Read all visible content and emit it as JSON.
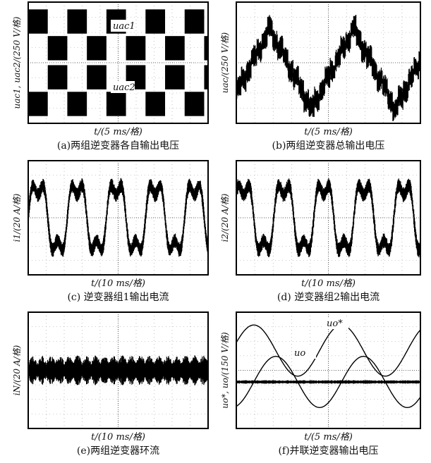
{
  "panels": [
    {
      "y_label": "uac1, uac2/(250 V/格)",
      "x_label": "t/(5 ms/格)",
      "caption": "(a)两组逆变器各自输出电压",
      "annotations": [
        "uac1",
        "uac2"
      ]
    },
    {
      "y_label": "uac/(250 V/格)",
      "x_label": "t/(5 ms/格)",
      "caption": "(b)两组逆变器总输出电压",
      "annotations": []
    },
    {
      "y_label": "i1/(20 A/格)",
      "x_label": "t/(10 ms/格)",
      "caption": "(c) 逆变器组1输出电流",
      "annotations": []
    },
    {
      "y_label": "i2/(20 A/格)",
      "x_label": "t/(10 ms/格)",
      "caption": "(d) 逆变器组2输出电流",
      "annotations": []
    },
    {
      "y_label": "iN/(20 A/格)",
      "x_label": "t/(10 ms/格)",
      "caption": "(e)两组逆变器环流",
      "annotations": []
    },
    {
      "y_label": "uo*, uo/(150 V/格)",
      "x_label": "t/(5 ms/格)",
      "caption": "(f)并联逆变器输出电压",
      "annotations": [
        "uo*",
        "uo"
      ]
    }
  ]
}
